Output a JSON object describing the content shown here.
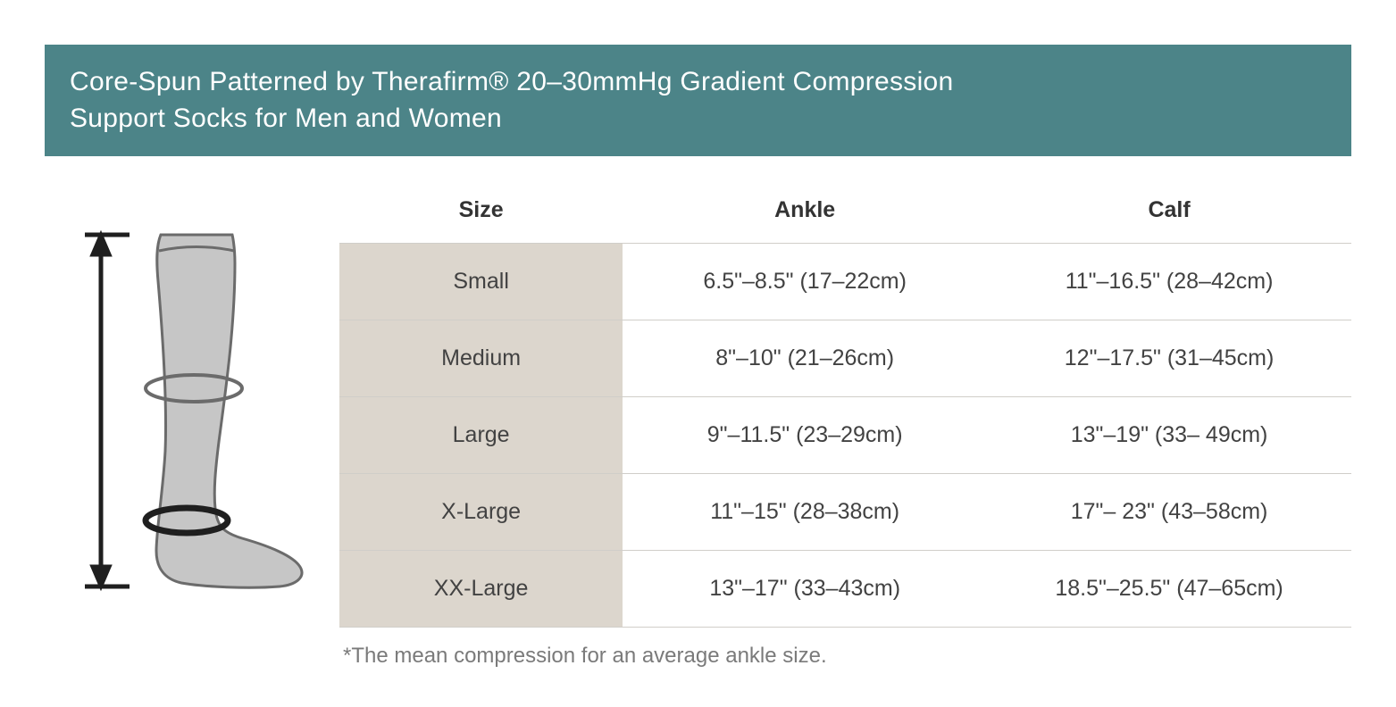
{
  "header": {
    "title_line1": "Core-Spun Patterned by Therafirm® 20–30mmHg Gradient Compression",
    "title_line2": "Support Socks for Men and Women",
    "bg_color": "#4c8488",
    "text_color": "#ffffff"
  },
  "table": {
    "columns": [
      "Size",
      "Ankle",
      "Calf"
    ],
    "rows": [
      {
        "size": "Small",
        "ankle": "6.5\"–8.5\" (17–22cm)",
        "calf": "11\"–16.5\" (28–42cm)"
      },
      {
        "size": "Medium",
        "ankle": "8\"–10\"  (21–26cm)",
        "calf": "12\"–17.5\" (31–45cm)"
      },
      {
        "size": "Large",
        "ankle": "9\"–11.5\" (23–29cm)",
        "calf": "13\"–19\" (33– 49cm)"
      },
      {
        "size": "X-Large",
        "ankle": "11\"–15\" (28–38cm)",
        "calf": "17\"– 23\" (43–58cm)"
      },
      {
        "size": "XX-Large",
        "ankle": "13\"–17\" (33–43cm)",
        "calf": "18.5\"–25.5\" (47–65cm)"
      }
    ],
    "size_col_bg": "#dcd6cd",
    "border_color": "#d0cec9",
    "header_text_color": "#333333",
    "cell_text_color": "#424242",
    "col_widths": [
      "28%",
      "36%",
      "36%"
    ]
  },
  "footnote": "*The mean compression for an average ankle size.",
  "diagram": {
    "fill_color": "#c6c6c6",
    "outline_color": "#6b6b6b",
    "arrow_color": "#1f1f1f",
    "calf_ring_color": "#6b6b6b",
    "ankle_ring_color": "#1f1f1f"
  }
}
